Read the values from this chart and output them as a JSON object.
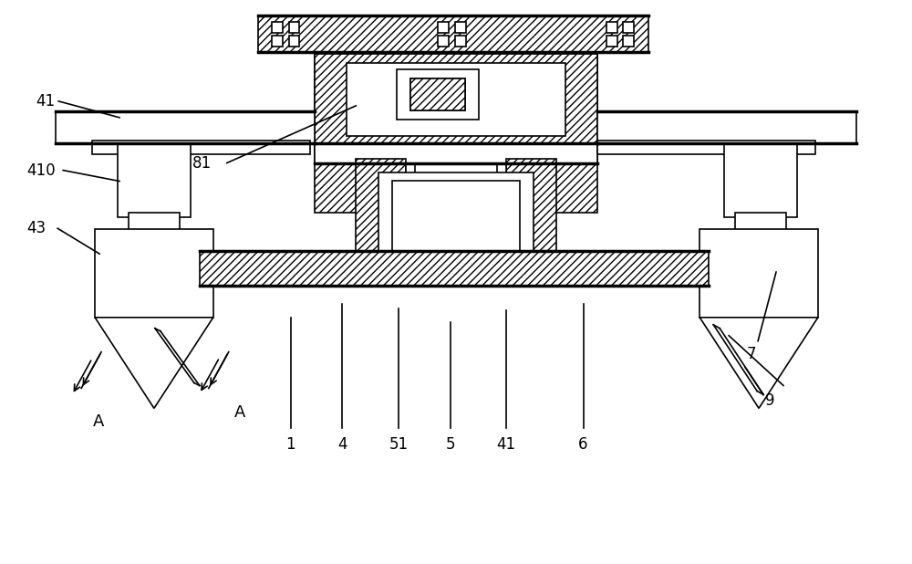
{
  "bg_color": "#ffffff",
  "line_color": "#000000",
  "fig_width": 10.0,
  "fig_height": 6.18,
  "lw": 1.2,
  "lw_thick": 2.5
}
